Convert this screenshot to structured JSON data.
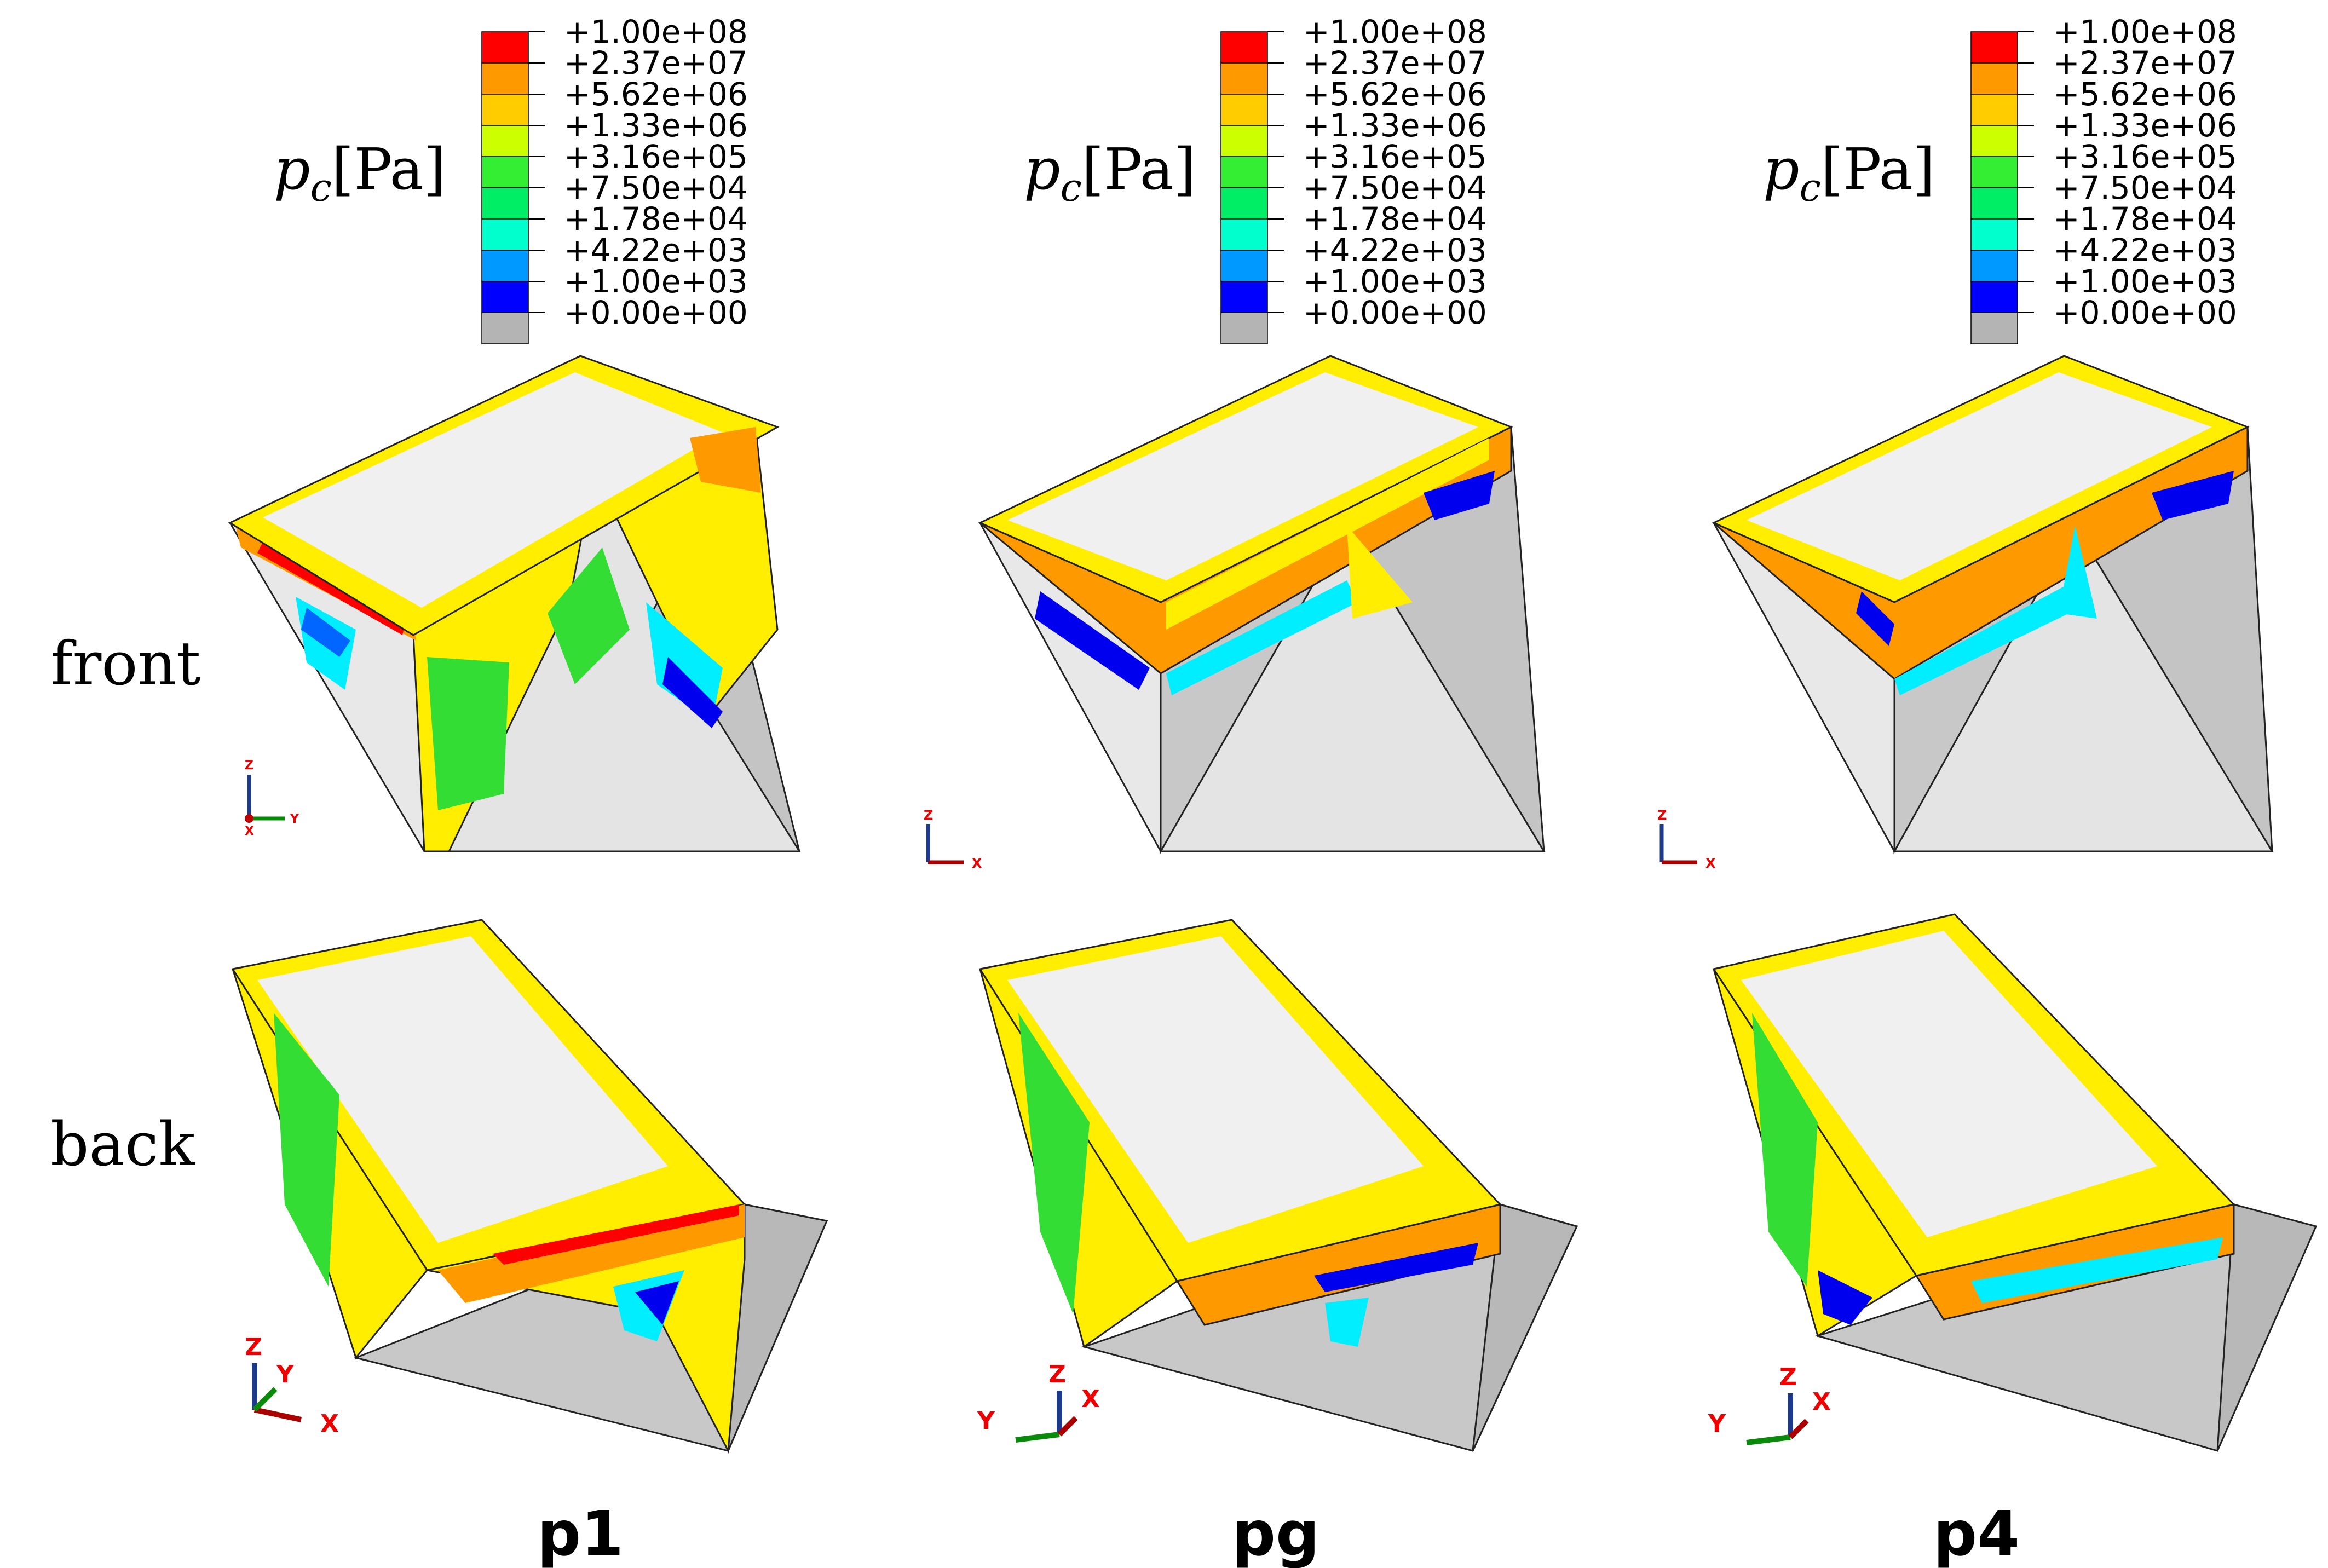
{
  "legend": {
    "title_main": "p",
    "title_sub": "c",
    "title_unit": "[Pa]",
    "values": [
      "+1.00e+08",
      "+2.37e+07",
      "+5.62e+06",
      "+1.33e+06",
      "+3.16e+05",
      "+7.50e+04",
      "+1.78e+04",
      "+4.22e+03",
      "+1.00e+03",
      "+0.00e+00"
    ],
    "colors": [
      "#ff0000",
      "#ff9900",
      "#ffcc00",
      "#ccff00",
      "#33ee33",
      "#00ee66",
      "#00ffcc",
      "#0099ff",
      "#0000ff",
      "#b4b4b4"
    ]
  },
  "rows": [
    {
      "label": "front"
    },
    {
      "label": "back"
    }
  ],
  "columns": [
    {
      "label": "p1",
      "front_triad": [
        "Z",
        "Y",
        "X"
      ],
      "back_triad": [
        "Z",
        "Y",
        "X"
      ]
    },
    {
      "label": "pg",
      "front_triad": [
        "Z",
        "X"
      ],
      "back_triad": [
        "Z",
        "X",
        "Y"
      ]
    },
    {
      "label": "p4",
      "front_triad": [
        "Z",
        "X"
      ],
      "back_triad": [
        "Z",
        "X",
        "Y"
      ]
    }
  ],
  "palette": {
    "red": "#ff0000",
    "orange": "#ff9900",
    "yellow": "#ffee00",
    "lime": "#ccff00",
    "green": "#33dd33",
    "cyan": "#00eeff",
    "blue": "#0066ff",
    "darkblue": "#0000ee",
    "grey": "#c8c8c8",
    "lightgrey": "#e2e2e2",
    "top": "#f0f0f0"
  }
}
